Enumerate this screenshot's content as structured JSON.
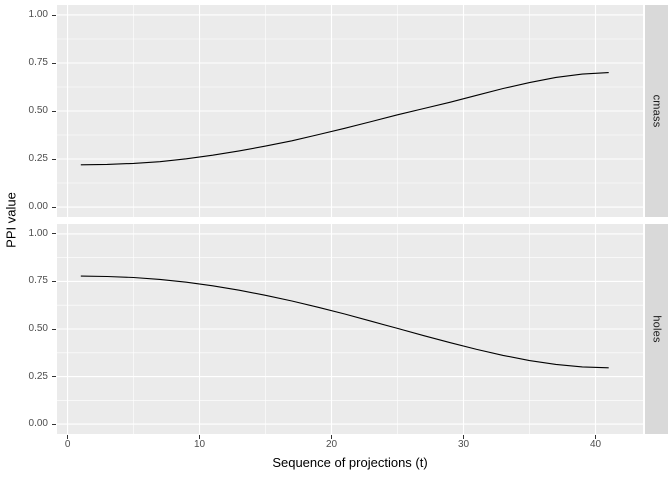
{
  "chart_data": {
    "type": "line",
    "title": "",
    "xlabel": "Sequence of projections (t)",
    "ylabel": "PPI value",
    "legend": "none",
    "grid": "on",
    "facet_side": "right",
    "xlim": [
      -0.8,
      43.6
    ],
    "ylim": [
      -0.052,
      1.052
    ],
    "x_ticks": [
      {
        "v": 0,
        "label": "0"
      },
      {
        "v": 10,
        "label": "10"
      },
      {
        "v": 20,
        "label": "20"
      },
      {
        "v": 30,
        "label": "30"
      },
      {
        "v": 40,
        "label": "40"
      }
    ],
    "x_minor": [
      5,
      15,
      25,
      35
    ],
    "y_ticks": [
      {
        "v": 1.0,
        "label": "1.00"
      },
      {
        "v": 0.75,
        "label": "0.75"
      },
      {
        "v": 0.5,
        "label": "0.50"
      },
      {
        "v": 0.25,
        "label": "0.25"
      },
      {
        "v": 0.0,
        "label": "0.00"
      }
    ],
    "y_minor": [
      0.125,
      0.375,
      0.625,
      0.875
    ],
    "x": [
      1,
      3,
      5,
      7,
      9,
      11,
      13,
      15,
      17,
      19,
      21,
      23,
      25,
      27,
      29,
      31,
      33,
      35,
      37,
      39,
      41
    ],
    "facets": [
      {
        "label": "cmass",
        "values": [
          0.22,
          0.222,
          0.227,
          0.236,
          0.251,
          0.27,
          0.292,
          0.317,
          0.345,
          0.377,
          0.41,
          0.445,
          0.48,
          0.513,
          0.546,
          0.582,
          0.617,
          0.648,
          0.675,
          0.692,
          0.7
        ]
      },
      {
        "label": "holes",
        "values": [
          0.778,
          0.776,
          0.771,
          0.761,
          0.746,
          0.727,
          0.704,
          0.677,
          0.647,
          0.614,
          0.579,
          0.541,
          0.503,
          0.465,
          0.428,
          0.393,
          0.361,
          0.334,
          0.314,
          0.301,
          0.296
        ]
      }
    ],
    "colors": {
      "background": "#FFFFFF",
      "panel_bg": "#EBEBEB",
      "strip_bg": "#D9D9D9",
      "grid": "#FFFFFF",
      "line": "#000000",
      "tick_text": "#4D4D4D",
      "axis_title": "#000000",
      "strip_text": "#1A1A1A",
      "tick_mark": "#333333"
    }
  }
}
